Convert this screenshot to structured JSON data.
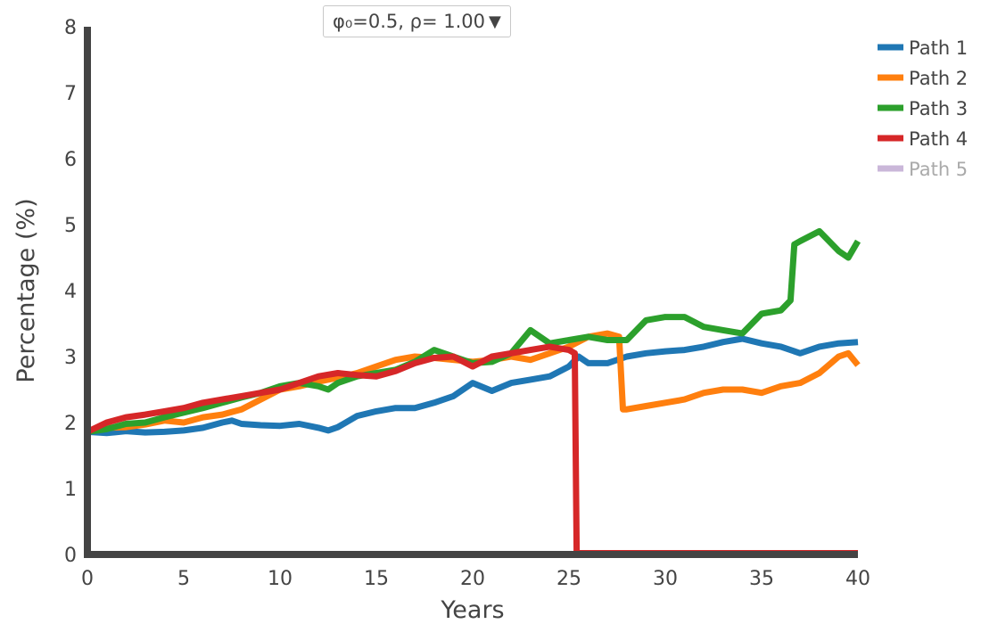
{
  "dropdown": {
    "selected": "φ₀=0.5, ρ= 1.00",
    "caret": "▼"
  },
  "chart_data": {
    "type": "line",
    "title": "",
    "xlabel": "Years",
    "ylabel": "Percentage (%)",
    "xlim": [
      0,
      40
    ],
    "ylim": [
      0,
      8
    ],
    "xticks": [
      0,
      5,
      10,
      15,
      20,
      25,
      30,
      35,
      40
    ],
    "yticks": [
      0,
      1,
      2,
      3,
      4,
      5,
      6,
      7,
      8
    ],
    "grid": false,
    "legend": "top-right",
    "series": [
      {
        "name": "Path 1",
        "color": "#1f77b4",
        "visible": true,
        "points": [
          [
            0,
            1.86
          ],
          [
            1,
            1.84
          ],
          [
            2,
            1.87
          ],
          [
            3,
            1.85
          ],
          [
            4,
            1.86
          ],
          [
            5,
            1.88
          ],
          [
            6,
            1.92
          ],
          [
            7,
            2.0
          ],
          [
            7.5,
            2.03
          ],
          [
            8,
            1.98
          ],
          [
            9,
            1.96
          ],
          [
            10,
            1.95
          ],
          [
            11,
            1.98
          ],
          [
            12,
            1.92
          ],
          [
            12.5,
            1.88
          ],
          [
            13,
            1.93
          ],
          [
            14,
            2.1
          ],
          [
            15,
            2.17
          ],
          [
            16,
            2.22
          ],
          [
            17,
            2.22
          ],
          [
            18,
            2.3
          ],
          [
            19,
            2.4
          ],
          [
            20,
            2.6
          ],
          [
            21,
            2.48
          ],
          [
            22,
            2.6
          ],
          [
            23,
            2.65
          ],
          [
            24,
            2.7
          ],
          [
            25,
            2.85
          ],
          [
            25.5,
            3.0
          ],
          [
            26,
            2.9
          ],
          [
            27,
            2.9
          ],
          [
            28,
            3.0
          ],
          [
            29,
            3.05
          ],
          [
            30,
            3.08
          ],
          [
            31,
            3.1
          ],
          [
            32,
            3.15
          ],
          [
            33,
            3.22
          ],
          [
            34,
            3.27
          ],
          [
            35,
            3.2
          ],
          [
            36,
            3.15
          ],
          [
            37,
            3.05
          ],
          [
            38,
            3.15
          ],
          [
            39,
            3.2
          ],
          [
            40,
            3.22
          ]
        ]
      },
      {
        "name": "Path 2",
        "color": "#ff7f0e",
        "visible": true,
        "points": [
          [
            0,
            1.86
          ],
          [
            1,
            1.92
          ],
          [
            2,
            1.93
          ],
          [
            3,
            1.97
          ],
          [
            4,
            2.03
          ],
          [
            5,
            2.0
          ],
          [
            6,
            2.08
          ],
          [
            7,
            2.12
          ],
          [
            8,
            2.2
          ],
          [
            9,
            2.35
          ],
          [
            10,
            2.5
          ],
          [
            11,
            2.55
          ],
          [
            12,
            2.62
          ],
          [
            13,
            2.68
          ],
          [
            14,
            2.75
          ],
          [
            15,
            2.85
          ],
          [
            16,
            2.95
          ],
          [
            17,
            3.0
          ],
          [
            18,
            2.98
          ],
          [
            19,
            2.95
          ],
          [
            20,
            2.92
          ],
          [
            21,
            2.95
          ],
          [
            22,
            3.0
          ],
          [
            23,
            2.95
          ],
          [
            24,
            3.05
          ],
          [
            25,
            3.15
          ],
          [
            26,
            3.3
          ],
          [
            27,
            3.35
          ],
          [
            27.6,
            3.3
          ],
          [
            27.8,
            2.2
          ],
          [
            28,
            2.2
          ],
          [
            29,
            2.25
          ],
          [
            30,
            2.3
          ],
          [
            31,
            2.35
          ],
          [
            32,
            2.45
          ],
          [
            33,
            2.5
          ],
          [
            34,
            2.5
          ],
          [
            35,
            2.45
          ],
          [
            36,
            2.55
          ],
          [
            37,
            2.6
          ],
          [
            38,
            2.75
          ],
          [
            39,
            3.0
          ],
          [
            39.5,
            3.05
          ],
          [
            40,
            2.87
          ]
        ]
      },
      {
        "name": "Path 3",
        "color": "#2ca02c",
        "visible": true,
        "points": [
          [
            0,
            1.86
          ],
          [
            1,
            1.9
          ],
          [
            2,
            1.98
          ],
          [
            3,
            2.0
          ],
          [
            4,
            2.08
          ],
          [
            5,
            2.15
          ],
          [
            6,
            2.22
          ],
          [
            7,
            2.3
          ],
          [
            8,
            2.38
          ],
          [
            9,
            2.45
          ],
          [
            10,
            2.55
          ],
          [
            11,
            2.6
          ],
          [
            12,
            2.55
          ],
          [
            12.5,
            2.5
          ],
          [
            13,
            2.6
          ],
          [
            14,
            2.7
          ],
          [
            15,
            2.75
          ],
          [
            16,
            2.8
          ],
          [
            17,
            2.92
          ],
          [
            18,
            3.1
          ],
          [
            19,
            3.0
          ],
          [
            20,
            2.9
          ],
          [
            21,
            2.92
          ],
          [
            22,
            3.05
          ],
          [
            23,
            3.4
          ],
          [
            24,
            3.2
          ],
          [
            25,
            3.25
          ],
          [
            26,
            3.3
          ],
          [
            27,
            3.25
          ],
          [
            28,
            3.25
          ],
          [
            29,
            3.55
          ],
          [
            30,
            3.6
          ],
          [
            31,
            3.6
          ],
          [
            32,
            3.45
          ],
          [
            33,
            3.4
          ],
          [
            34,
            3.35
          ],
          [
            35,
            3.65
          ],
          [
            36,
            3.7
          ],
          [
            36.5,
            3.85
          ],
          [
            36.7,
            4.7
          ],
          [
            37,
            4.75
          ],
          [
            38,
            4.9
          ],
          [
            39,
            4.6
          ],
          [
            39.5,
            4.5
          ],
          [
            40,
            4.75
          ]
        ]
      },
      {
        "name": "Path 4",
        "color": "#d62728",
        "visible": true,
        "points": [
          [
            0,
            1.86
          ],
          [
            1,
            2.0
          ],
          [
            2,
            2.08
          ],
          [
            3,
            2.12
          ],
          [
            4,
            2.17
          ],
          [
            5,
            2.22
          ],
          [
            6,
            2.3
          ],
          [
            7,
            2.35
          ],
          [
            8,
            2.4
          ],
          [
            9,
            2.45
          ],
          [
            10,
            2.5
          ],
          [
            11,
            2.6
          ],
          [
            12,
            2.7
          ],
          [
            13,
            2.75
          ],
          [
            14,
            2.72
          ],
          [
            15,
            2.7
          ],
          [
            16,
            2.78
          ],
          [
            17,
            2.9
          ],
          [
            18,
            2.98
          ],
          [
            19,
            3.0
          ],
          [
            20,
            2.85
          ],
          [
            21,
            3.0
          ],
          [
            22,
            3.05
          ],
          [
            23,
            3.1
          ],
          [
            24,
            3.15
          ],
          [
            25,
            3.1
          ],
          [
            25.3,
            3.05
          ],
          [
            25.4,
            0.02
          ],
          [
            40,
            0.02
          ]
        ]
      },
      {
        "name": "Path 5",
        "color": "#c5b0d5",
        "visible": false,
        "points": []
      }
    ]
  }
}
